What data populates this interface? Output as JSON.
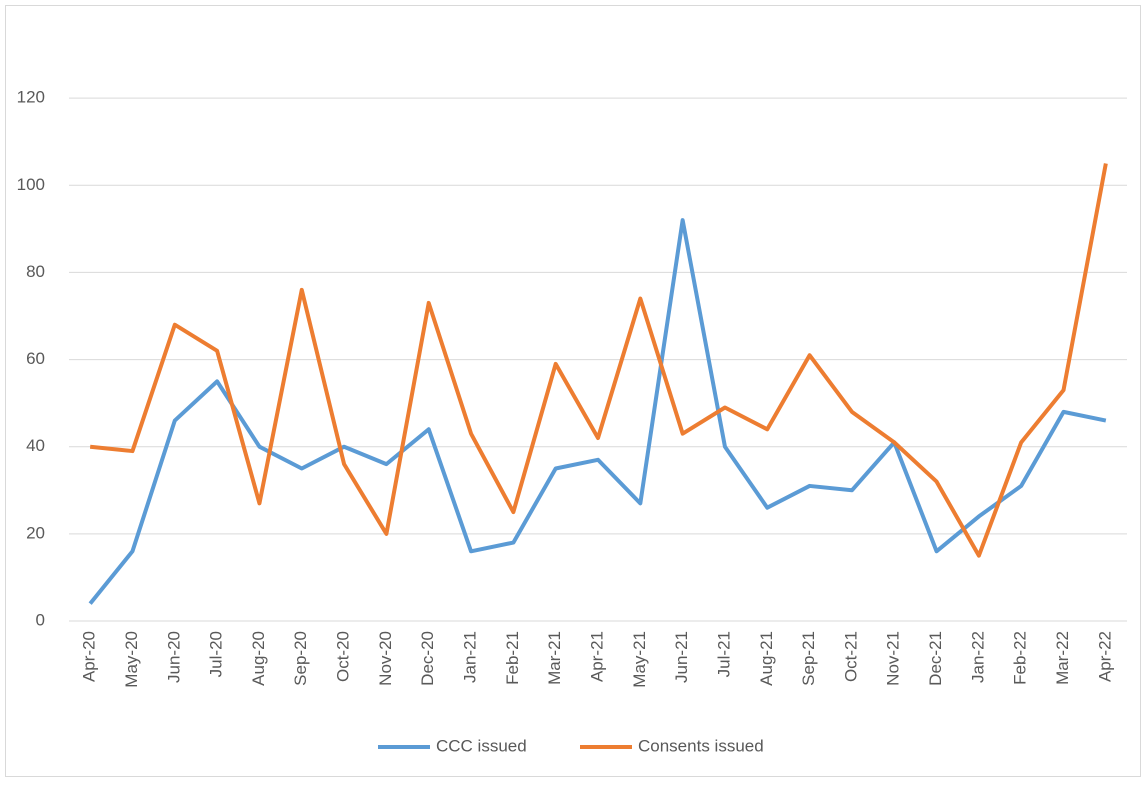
{
  "chart_data": {
    "type": "line",
    "categories": [
      "Apr-20",
      "May-20",
      "Jun-20",
      "Jul-20",
      "Aug-20",
      "Sep-20",
      "Oct-20",
      "Nov-20",
      "Dec-20",
      "Jan-21",
      "Feb-21",
      "Mar-21",
      "Apr-21",
      "May-21",
      "Jun-21",
      "Jul-21",
      "Aug-21",
      "Sep-21",
      "Oct-21",
      "Nov-21",
      "Dec-21",
      "Jan-22",
      "Feb-22",
      "Mar-22",
      "Apr-22"
    ],
    "series": [
      {
        "name": "CCC issued",
        "color": "#5b9bd5",
        "values": [
          4,
          16,
          46,
          55,
          40,
          35,
          40,
          36,
          44,
          16,
          18,
          35,
          37,
          27,
          92,
          40,
          26,
          31,
          30,
          41,
          16,
          24,
          31,
          48,
          46
        ]
      },
      {
        "name": "Consents issued",
        "color": "#ed7d31",
        "values": [
          40,
          39,
          68,
          62,
          27,
          76,
          36,
          20,
          73,
          43,
          25,
          59,
          42,
          74,
          43,
          49,
          44,
          61,
          48,
          41,
          32,
          15,
          41,
          53,
          105
        ]
      }
    ],
    "ylim": [
      0,
      140
    ],
    "yticks": [
      0,
      20,
      40,
      60,
      80,
      100,
      120
    ],
    "grid": true,
    "legend": "bottom"
  }
}
